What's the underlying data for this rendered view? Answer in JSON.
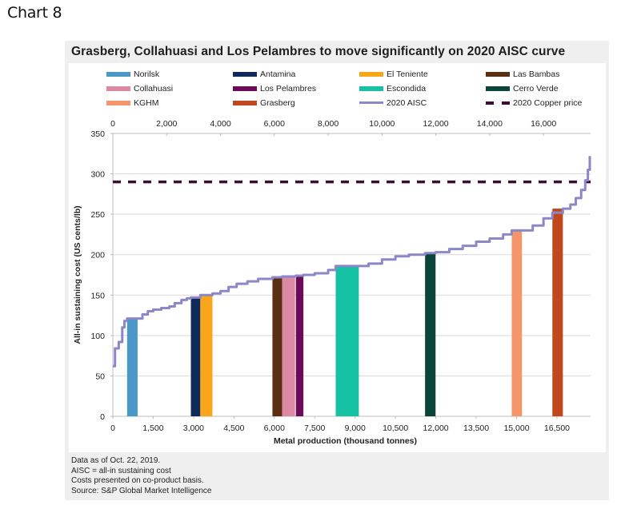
{
  "page": {
    "chart_label": "Chart 8"
  },
  "chart_data": {
    "type": "bar",
    "title": "Grasberg, Collahuasi and Los Pelambres to move significantly on 2020 AISC curve",
    "xlabel": "Metal production (thousand tonnes)",
    "ylabel": "All-in sustaining cost (US cents/lb)",
    "xlim": [
      0,
      17750
    ],
    "ylim": [
      0,
      350
    ],
    "grid": true,
    "legend_placement": "top",
    "y_ticks": [
      0,
      50,
      100,
      150,
      200,
      250,
      300,
      350
    ],
    "x_ticks_bottom": [
      0,
      1500,
      3000,
      4500,
      6000,
      7500,
      9000,
      10500,
      12000,
      13500,
      15000,
      16500
    ],
    "x_tick_labels_bottom": [
      "0",
      "1,500",
      "3,000",
      "4,500",
      "6,000",
      "7,500",
      "9,000",
      "10,500",
      "12,000",
      "13,500",
      "15,000",
      "16,500"
    ],
    "x_ticks_top": [
      0,
      2000,
      4000,
      6000,
      8000,
      10000,
      12000,
      14000,
      16000
    ],
    "x_tick_labels_top": [
      "0",
      "2,000",
      "4,000",
      "6,000",
      "8,000",
      "10,000",
      "12,000",
      "14,000",
      "16,000"
    ],
    "y_tick_labels": [
      "0",
      "50",
      "100",
      "150",
      "200",
      "250",
      "300",
      "350"
    ],
    "mines": [
      {
        "name": "Norilsk",
        "x_start": 530,
        "x_end": 920,
        "aisc": 121,
        "color": "#4a98c5"
      },
      {
        "name": "Antamina",
        "x_start": 2900,
        "x_end": 3250,
        "aisc": 147,
        "color": "#0f2a5a"
      },
      {
        "name": "El Teniente",
        "x_start": 3250,
        "x_end": 3700,
        "aisc": 150,
        "color": "#f9a61c"
      },
      {
        "name": "Las Bambas",
        "x_start": 5930,
        "x_end": 6290,
        "aisc": 172,
        "color": "#5a2e10"
      },
      {
        "name": "Collahuasi",
        "x_start": 6290,
        "x_end": 6770,
        "aisc": 173,
        "color": "#dc89a3"
      },
      {
        "name": "Los Pelambres",
        "x_start": 6800,
        "x_end": 7080,
        "aisc": 174,
        "color": "#6b0a57"
      },
      {
        "name": "Escondida",
        "x_start": 8280,
        "x_end": 9140,
        "aisc": 186,
        "color": "#15c2a3"
      },
      {
        "name": "Cerro Verde",
        "x_start": 11600,
        "x_end": 11990,
        "aisc": 203,
        "color": "#0b4439"
      },
      {
        "name": "KGHM",
        "x_start": 14820,
        "x_end": 15200,
        "aisc": 230,
        "color": "#f4956a"
      },
      {
        "name": "Grasberg",
        "x_start": 16330,
        "x_end": 16720,
        "aisc": 257,
        "color": "#c1481d"
      }
    ],
    "series": [
      {
        "name": "2020 AISC",
        "type": "step-line",
        "color": "#8b87c8",
        "x": [
          0,
          80,
          80,
          220,
          220,
          350,
          350,
          430,
          430,
          530,
          920,
          1100,
          1300,
          1500,
          1800,
          2100,
          2300,
          2550,
          2750,
          2900,
          3250,
          3700,
          4000,
          4300,
          4600,
          5000,
          5400,
          5930,
          6290,
          6800,
          7080,
          7500,
          8000,
          8280,
          9140,
          9500,
          10000,
          10500,
          11000,
          11600,
          11990,
          12500,
          13000,
          13500,
          14000,
          14500,
          14820,
          15200,
          15600,
          16000,
          16330,
          16720,
          17000,
          17200,
          17400,
          17550,
          17650,
          17720
        ],
        "y": [
          62,
          62,
          84,
          84,
          92,
          92,
          110,
          110,
          118,
          121,
          121,
          126,
          130,
          132,
          134,
          136,
          140,
          144,
          146,
          147,
          150,
          152,
          155,
          160,
          164,
          167,
          170,
          172,
          173,
          174,
          175,
          177,
          181,
          186,
          186,
          189,
          194,
          198,
          200,
          202,
          203,
          207,
          211,
          216,
          220,
          225,
          230,
          230,
          236,
          245,
          252,
          257,
          262,
          270,
          280,
          292,
          305,
          322
        ]
      },
      {
        "name": "2020 Copper price",
        "type": "dashed-line",
        "color": "#3d0c35",
        "value": 290
      }
    ],
    "legend": [
      {
        "label": "Norilsk",
        "kind": "bar",
        "color": "#4a98c5"
      },
      {
        "label": "Antamina",
        "kind": "bar",
        "color": "#0f2a5a"
      },
      {
        "label": "El Teniente",
        "kind": "bar",
        "color": "#f9a61c"
      },
      {
        "label": "Las Bambas",
        "kind": "bar",
        "color": "#5a2e10"
      },
      {
        "label": "Collahuasi",
        "kind": "bar",
        "color": "#dc89a3"
      },
      {
        "label": "Los Pelambres",
        "kind": "bar",
        "color": "#6b0a57"
      },
      {
        "label": "Escondida",
        "kind": "bar",
        "color": "#15c2a3"
      },
      {
        "label": "Cerro Verde",
        "kind": "bar",
        "color": "#0b4439"
      },
      {
        "label": "KGHM",
        "kind": "bar",
        "color": "#f4956a"
      },
      {
        "label": "Grasberg",
        "kind": "bar",
        "color": "#c1481d"
      },
      {
        "label": "2020 AISC",
        "kind": "line",
        "color": "#8b87c8"
      },
      {
        "label": "2020 Copper price",
        "kind": "dash",
        "color": "#3d0c35"
      }
    ]
  },
  "footnotes": [
    "Data as of Oct. 22, 2019.",
    "AISC = all-in sustaining cost",
    "Costs presented on co-product basis.",
    "Source: S&P Global Market Intelligence"
  ]
}
